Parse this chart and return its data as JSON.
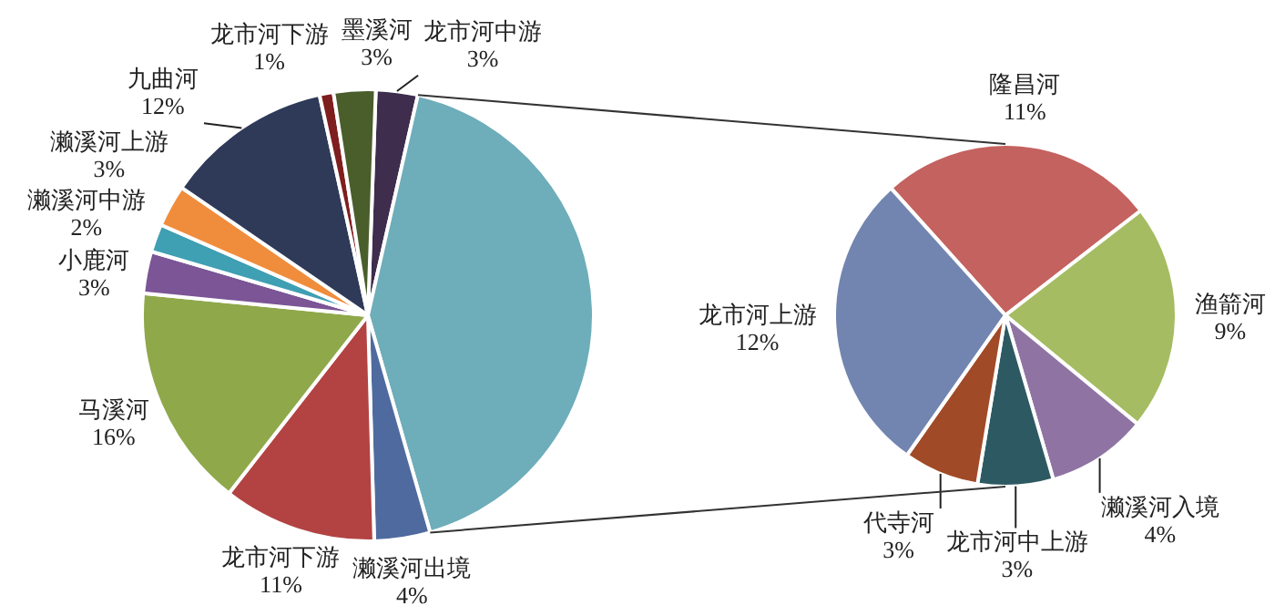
{
  "chart_data": [
    {
      "type": "pie",
      "categories": [
        "龙市河中游",
        null,
        "濑溪河出境",
        "龙市河下游",
        "马溪河",
        "小鹿河",
        "濑溪河中游",
        "濑溪河上游",
        "九曲河",
        "龙市河下游",
        "墨溪河"
      ],
      "values": [
        3,
        42,
        4,
        11,
        16,
        3,
        2,
        3,
        12,
        1,
        3
      ],
      "value_labels": [
        "3%",
        null,
        "4%",
        "11%",
        "16%",
        "3%",
        "2%",
        "3%",
        "12%",
        "1%",
        "3%"
      ],
      "colors": [
        "#3e2d4c",
        "#6eadba",
        "#4f6a9e",
        "#b34343",
        "#8fa84a",
        "#7b5596",
        "#3f9fb3",
        "#f08d3c",
        "#2e3a58",
        "#7e1e1e",
        "#4a5e2c"
      ]
    },
    {
      "type": "pie",
      "categories": [
        "隆昌河",
        "渔箭河",
        "濑溪河入境",
        "龙市河中上游",
        "代寺河",
        "龙市河上游"
      ],
      "values": [
        11,
        9,
        4,
        3,
        3,
        12
      ],
      "value_labels": [
        "11%",
        "9%",
        "4%",
        "3%",
        "3%",
        "12%"
      ],
      "colors": [
        "#c4625f",
        "#a5bc62",
        "#8f74a3",
        "#2d5a62",
        "#a14a27",
        "#7285b0"
      ]
    }
  ]
}
